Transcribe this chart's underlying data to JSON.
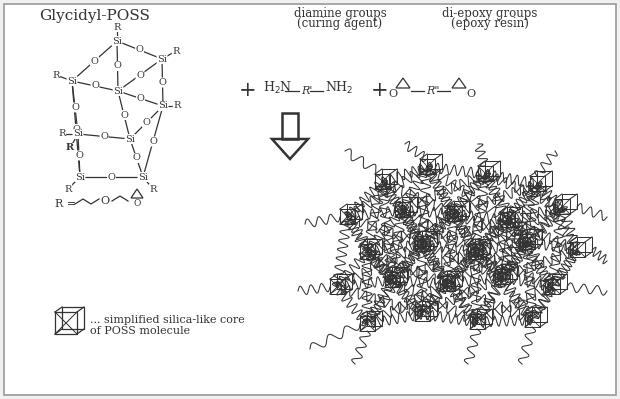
{
  "title": "Glycidyl-POSS",
  "label1": "diamine groups",
  "label1b": "(curing agent)",
  "label2": "di-epoxy groups",
  "label2b": "(epoxy resin)",
  "legend_text1": "... simplified silica-like core",
  "legend_text2": "of POSS molecule",
  "bg_color": "#f0f0f0",
  "border_color": "#999999",
  "line_color": "#333333",
  "font_size_title": 11,
  "font_size_label": 8.5,
  "font_size_small": 7.5,
  "font_size_atom": 7
}
